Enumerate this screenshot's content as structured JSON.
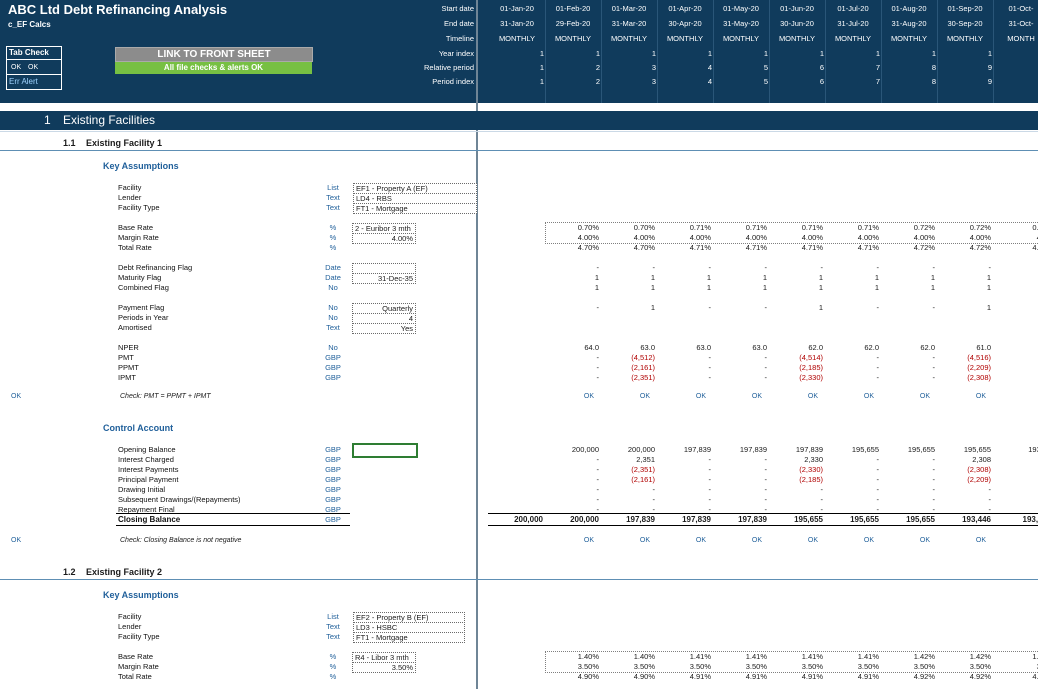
{
  "header": {
    "title": "ABC Ltd Debt Refinancing Analysis",
    "sheet": "c_EF Calcs",
    "tab_check": {
      "label": "Tab Check",
      "ok1": "OK",
      "ok2": "OK",
      "err": "Err Alert"
    },
    "link_button": "LINK TO FRONT SHEET",
    "checks_status": "All file checks & alerts OK",
    "row_labels": [
      "Start date",
      "End date",
      "Timeline",
      "Year index",
      "Relative period",
      "Period index"
    ],
    "colors": {
      "navy": "#103b5c",
      "button_grey": "#8c8c8c",
      "ok_green": "#77c043"
    }
  },
  "timeline": {
    "start_dates": [
      "01-Jan-20",
      "01-Feb-20",
      "01-Mar-20",
      "01-Apr-20",
      "01-May-20",
      "01-Jun-20",
      "01-Jul-20",
      "01-Aug-20",
      "01-Sep-20",
      "01-Oct-"
    ],
    "end_dates": [
      "31-Jan-20",
      "29-Feb-20",
      "31-Mar-20",
      "30-Apr-20",
      "31-May-20",
      "30-Jun-20",
      "31-Jul-20",
      "31-Aug-20",
      "30-Sep-20",
      "31-Oct-"
    ],
    "timeline": [
      "MONTHLY",
      "MONTHLY",
      "MONTHLY",
      "MONTHLY",
      "MONTHLY",
      "MONTHLY",
      "MONTHLY",
      "MONTHLY",
      "MONTHLY",
      "MONTH"
    ],
    "year_index": [
      "1",
      "1",
      "1",
      "1",
      "1",
      "1",
      "1",
      "1",
      "1",
      "1"
    ],
    "relative_period": [
      "1",
      "2",
      "3",
      "4",
      "5",
      "6",
      "7",
      "8",
      "9",
      ""
    ],
    "period_index": [
      "1",
      "2",
      "3",
      "4",
      "5",
      "6",
      "7",
      "8",
      "9",
      ""
    ]
  },
  "section1": {
    "num": "1",
    "title": "Existing Facilities",
    "sub1": {
      "num": "1.1",
      "title": "Existing Facility 1"
    },
    "sub2": {
      "num": "1.2",
      "title": "Existing Facility 2"
    }
  },
  "key_assumptions_title": "Key Assumptions",
  "control_account_title": "Control Account",
  "ef1": {
    "rows": [
      {
        "label": "Facility",
        "unit": "List",
        "value": "EF1 - Property A (EF)"
      },
      {
        "label": "Lender",
        "unit": "Text",
        "value": "LD4 - RBS"
      },
      {
        "label": "Facility Type",
        "unit": "Text",
        "value": "FT1 - Mortgage"
      }
    ],
    "rates": [
      {
        "label": "Base Rate",
        "unit": "%",
        "value": "2 - Euribor 3 mth",
        "cells": [
          "",
          "0.70%",
          "0.70%",
          "0.71%",
          "0.71%",
          "0.71%",
          "0.71%",
          "0.72%",
          "0.72%",
          "0.72"
        ]
      },
      {
        "label": "Margin Rate",
        "unit": "%",
        "value": "4.00%",
        "cells": [
          "",
          "4.00%",
          "4.00%",
          "4.00%",
          "4.00%",
          "4.00%",
          "4.00%",
          "4.00%",
          "4.00%",
          "4.0"
        ]
      },
      {
        "label": "Total Rate",
        "unit": "%",
        "value": "",
        "cells": [
          "",
          "4.70%",
          "4.70%",
          "4.71%",
          "4.71%",
          "4.71%",
          "4.71%",
          "4.72%",
          "4.72%",
          "4.72"
        ]
      }
    ],
    "flags": [
      {
        "label": "Debt Refinancing Flag",
        "unit": "Date",
        "value": "",
        "cells": [
          "",
          "-",
          "-",
          "-",
          "-",
          "-",
          "-",
          "-",
          "-",
          ""
        ]
      },
      {
        "label": "Maturity Flag",
        "unit": "Date",
        "value": "31-Dec-35",
        "cells": [
          "",
          "1",
          "1",
          "1",
          "1",
          "1",
          "1",
          "1",
          "1",
          ""
        ]
      },
      {
        "label": "Combined Flag",
        "unit": "No",
        "value": "",
        "cells": [
          "",
          "1",
          "1",
          "1",
          "1",
          "1",
          "1",
          "1",
          "1",
          ""
        ]
      }
    ],
    "payment": [
      {
        "label": "Payment Flag",
        "unit": "No",
        "value": "Quarterly",
        "cells": [
          "",
          "-",
          "1",
          "-",
          "-",
          "1",
          "-",
          "-",
          "1",
          ""
        ]
      },
      {
        "label": "Periods in Year",
        "unit": "No",
        "value": "4",
        "cells": [
          "",
          "",
          "",
          "",
          "",
          "",
          "",
          "",
          "",
          ""
        ]
      },
      {
        "label": "Amortised",
        "unit": "Text",
        "value": "Yes",
        "cells": [
          "",
          "",
          "",
          "",
          "",
          "",
          "",
          "",
          "",
          ""
        ]
      }
    ],
    "pmt": [
      {
        "label": "NPER",
        "unit": "No",
        "cells": [
          "",
          "64.0",
          "63.0",
          "63.0",
          "63.0",
          "62.0",
          "62.0",
          "62.0",
          "61.0",
          "61"
        ]
      },
      {
        "label": "PMT",
        "unit": "GBP",
        "cells": [
          "",
          "-",
          "(4,512)",
          "-",
          "-",
          "(4,514)",
          "-",
          "-",
          "(4,516)",
          ""
        ]
      },
      {
        "label": "PPMT",
        "unit": "GBP",
        "cells": [
          "",
          "-",
          "(2,161)",
          "-",
          "-",
          "(2,185)",
          "-",
          "-",
          "(2,209)",
          ""
        ]
      },
      {
        "label": "IPMT",
        "unit": "GBP",
        "cells": [
          "",
          "-",
          "(2,351)",
          "-",
          "-",
          "(2,330)",
          "-",
          "-",
          "(2,308)",
          ""
        ]
      }
    ],
    "check1": {
      "flag": "OK",
      "label": "Check: PMT = PPMT + IPMT",
      "cells": [
        "",
        "OK",
        "OK",
        "OK",
        "OK",
        "OK",
        "OK",
        "OK",
        "OK",
        ""
      ]
    },
    "control": [
      {
        "label": "Opening Balance",
        "unit": "GBP",
        "cells": [
          "",
          "200,000",
          "200,000",
          "197,839",
          "197,839",
          "197,839",
          "195,655",
          "195,655",
          "195,655",
          "193,4"
        ]
      },
      {
        "label": "Interest Charged",
        "unit": "GBP",
        "cells": [
          "",
          "-",
          "2,351",
          "-",
          "-",
          "2,330",
          "-",
          "-",
          "2,308",
          ""
        ]
      },
      {
        "label": "Interest Payments",
        "unit": "GBP",
        "cells": [
          "",
          "-",
          "(2,351)",
          "-",
          "-",
          "(2,330)",
          "-",
          "-",
          "(2,308)",
          ""
        ]
      },
      {
        "label": "Principal Payment",
        "unit": "GBP",
        "cells": [
          "",
          "-",
          "(2,161)",
          "-",
          "-",
          "(2,185)",
          "-",
          "-",
          "(2,209)",
          ""
        ]
      },
      {
        "label": "Drawing Initial",
        "unit": "GBP",
        "cells": [
          "",
          "-",
          "-",
          "-",
          "-",
          "-",
          "-",
          "-",
          "-",
          ""
        ]
      },
      {
        "label": "Subsequent Drawings/(Repayments)",
        "unit": "GBP",
        "cells": [
          "",
          "-",
          "-",
          "-",
          "-",
          "-",
          "-",
          "-",
          "-",
          ""
        ]
      },
      {
        "label": "Repayment Final",
        "unit": "GBP",
        "cells": [
          "",
          "-",
          "-",
          "-",
          "-",
          "-",
          "-",
          "-",
          "-",
          ""
        ]
      }
    ],
    "closing": {
      "label": "Closing Balance",
      "unit": "GBP",
      "cells": [
        "200,000",
        "200,000",
        "197,839",
        "197,839",
        "197,839",
        "195,655",
        "195,655",
        "195,655",
        "193,446",
        "193,44"
      ]
    },
    "check2": {
      "flag": "OK",
      "label": "Check: Closing Balance is not negative",
      "cells": [
        "",
        "OK",
        "OK",
        "OK",
        "OK",
        "OK",
        "OK",
        "OK",
        "OK",
        ""
      ]
    }
  },
  "ef2": {
    "rows": [
      {
        "label": "Facility",
        "unit": "List",
        "value": "EF2 - Property B (EF)"
      },
      {
        "label": "Lender",
        "unit": "Text",
        "value": "LD3 - HSBC"
      },
      {
        "label": "Facility Type",
        "unit": "Text",
        "value": "FT1 - Mortgage"
      }
    ],
    "rates": [
      {
        "label": "Base Rate",
        "unit": "%",
        "value": "R4 - Libor 3 mth",
        "cells": [
          "",
          "1.40%",
          "1.40%",
          "1.41%",
          "1.41%",
          "1.41%",
          "1.41%",
          "1.42%",
          "1.42%",
          "1.42"
        ]
      },
      {
        "label": "Margin Rate",
        "unit": "%",
        "value": "3.50%",
        "cells": [
          "",
          "3.50%",
          "3.50%",
          "3.50%",
          "3.50%",
          "3.50%",
          "3.50%",
          "3.50%",
          "3.50%",
          "3.5"
        ]
      },
      {
        "label": "Total Rate",
        "unit": "%",
        "value": "",
        "cells": [
          "",
          "4.90%",
          "4.90%",
          "4.91%",
          "4.91%",
          "4.91%",
          "4.91%",
          "4.92%",
          "4.92%",
          "4.92"
        ]
      }
    ]
  }
}
